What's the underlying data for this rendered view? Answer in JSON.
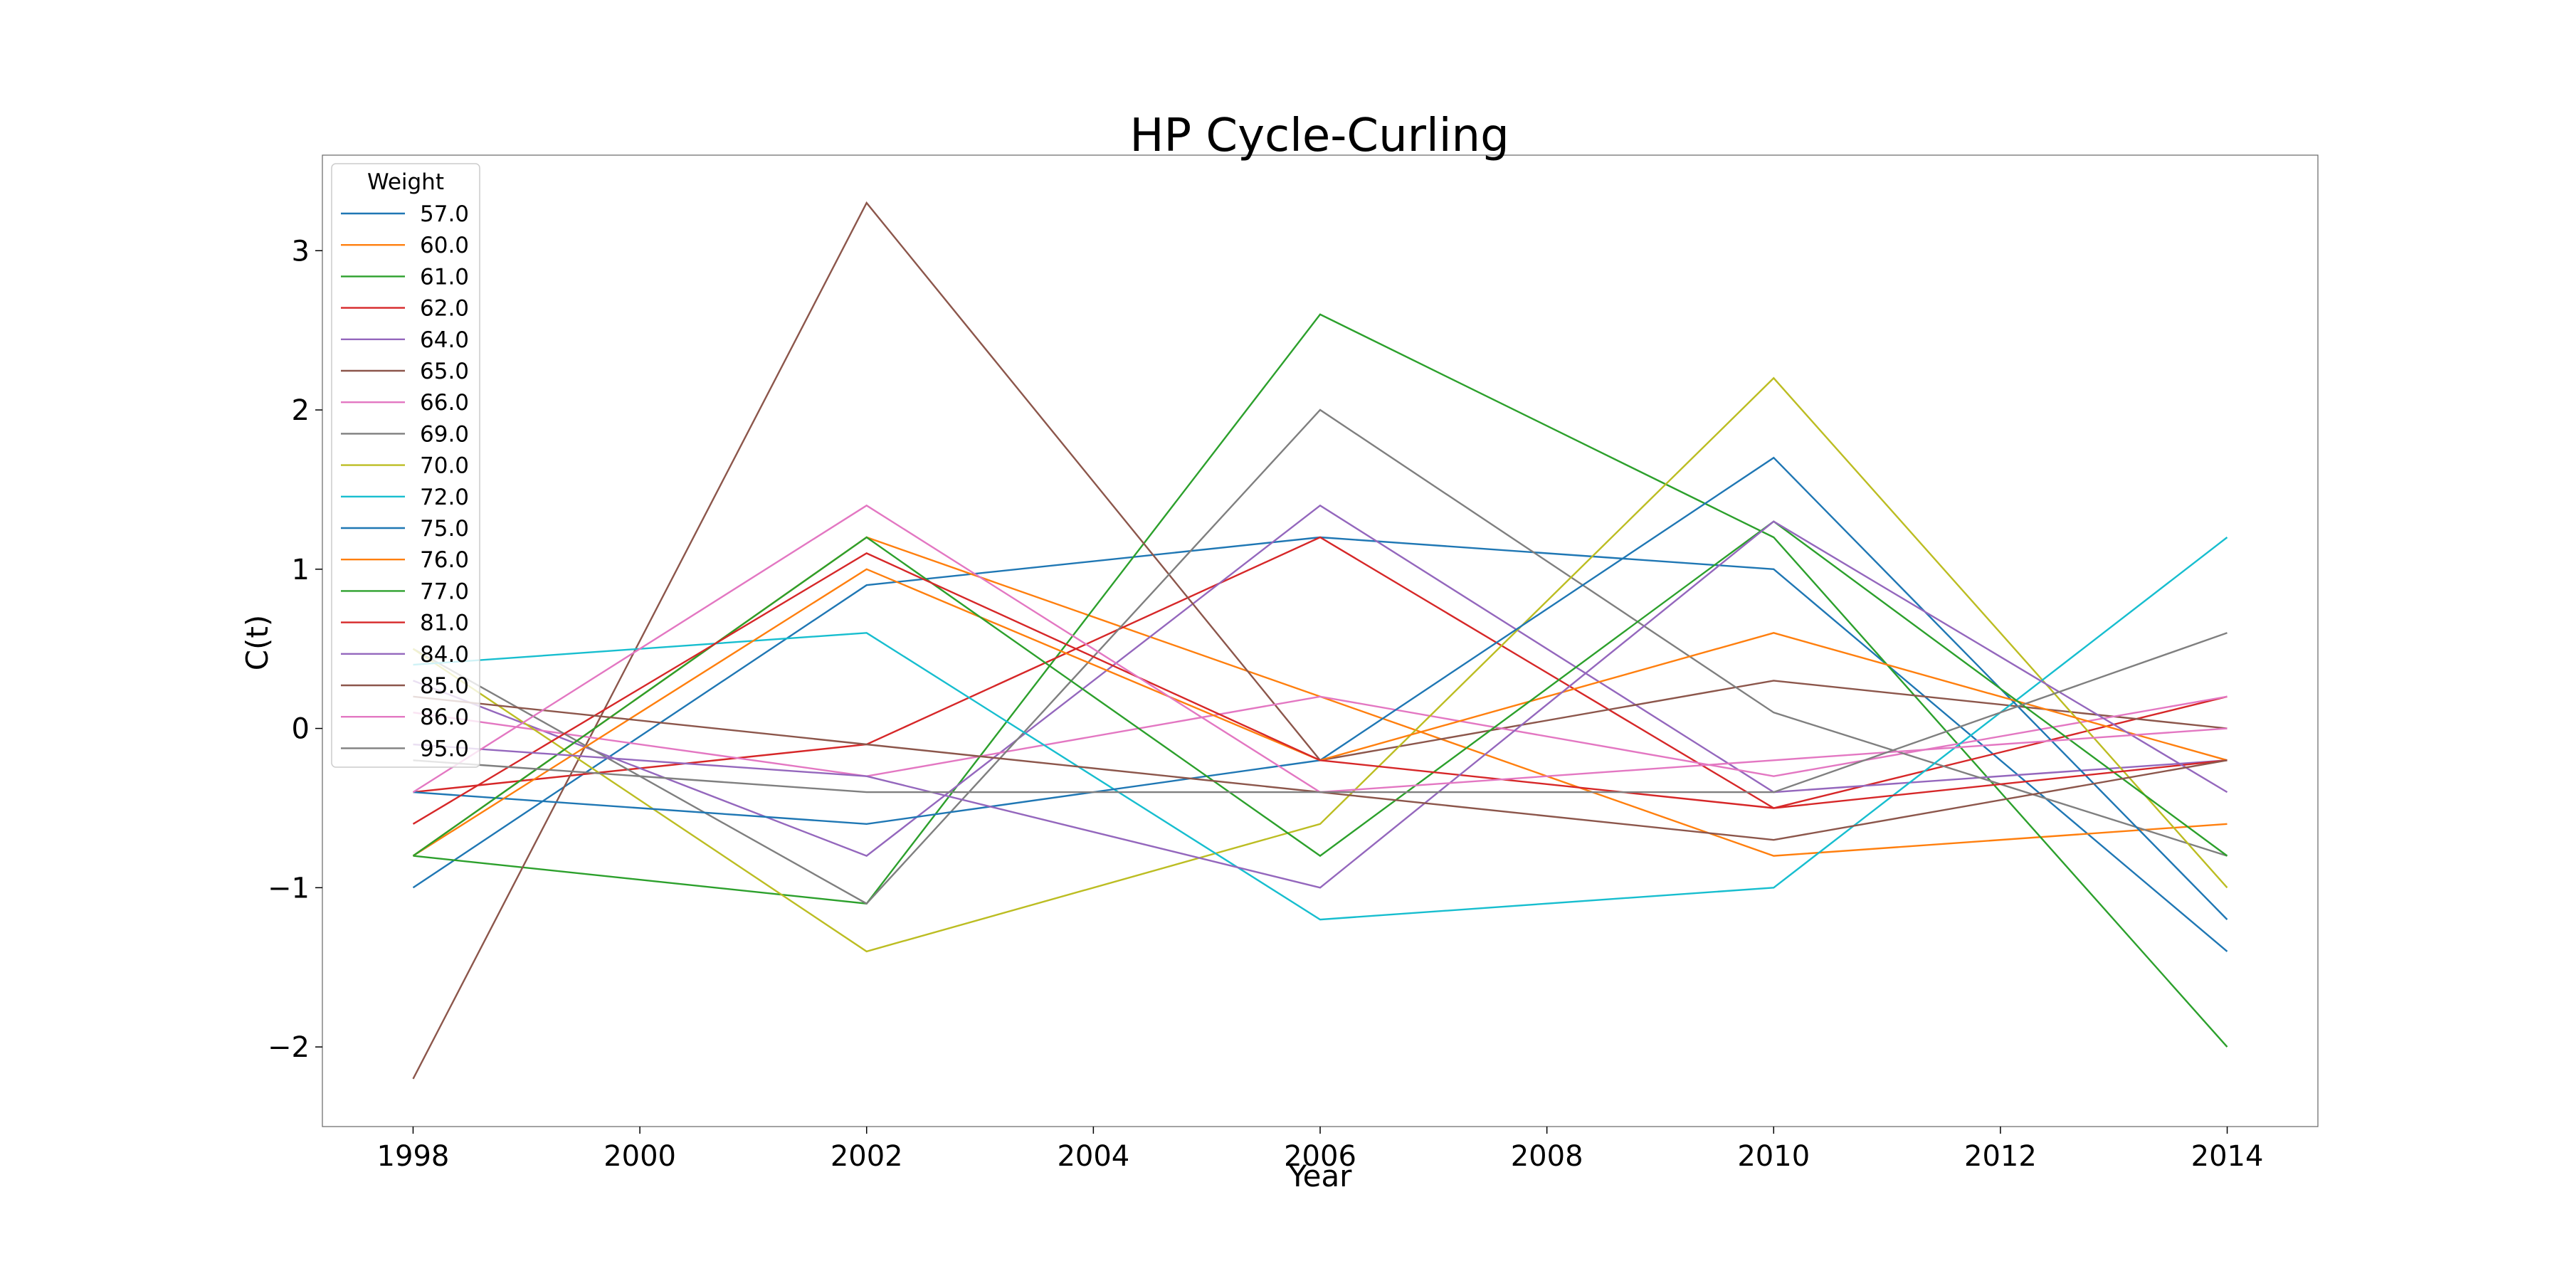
{
  "chart_data": {
    "type": "line",
    "title": "HP Cycle-Curling",
    "xlabel": "Year",
    "ylabel": "C(t)",
    "x": [
      1998,
      2002,
      2006,
      2010,
      2014
    ],
    "xlim": [
      1997.2,
      2014.8
    ],
    "ylim": [
      -2.5,
      3.6
    ],
    "xticks": [
      1998,
      2000,
      2002,
      2004,
      2006,
      2008,
      2010,
      2012,
      2014
    ],
    "yticks": [
      -2,
      -1,
      0,
      1,
      2,
      3
    ],
    "ytick_labels": [
      "−2",
      "−1",
      "0",
      "1",
      "2",
      "3"
    ],
    "grid": false,
    "legend": {
      "title": "Weight",
      "placement": "upper-left"
    },
    "series": [
      {
        "name": "57.0",
        "color": "#1f77b4",
        "values": [
          -1.0,
          0.9,
          1.2,
          1.0,
          -1.4
        ]
      },
      {
        "name": "60.0",
        "color": "#ff7f0e",
        "values": [
          -0.8,
          1.2,
          0.2,
          -0.8,
          -0.6
        ]
      },
      {
        "name": "61.0",
        "color": "#2ca02c",
        "values": [
          -0.8,
          -1.1,
          2.6,
          1.2,
          -2.0
        ]
      },
      {
        "name": "62.0",
        "color": "#d62728",
        "values": [
          -0.4,
          -0.1,
          1.2,
          -0.5,
          0.2
        ]
      },
      {
        "name": "64.0",
        "color": "#9467bd",
        "values": [
          0.3,
          -0.8,
          1.4,
          -0.4,
          -0.2
        ]
      },
      {
        "name": "65.0",
        "color": "#8c564b",
        "values": [
          -2.2,
          3.3,
          -0.2,
          0.3,
          0.0
        ]
      },
      {
        "name": "66.0",
        "color": "#e377c2",
        "values": [
          0.1,
          -0.3,
          0.2,
          -0.3,
          0.2
        ]
      },
      {
        "name": "69.0",
        "color": "#7f7f7f",
        "values": [
          0.5,
          -1.1,
          2.0,
          0.1,
          -0.8
        ]
      },
      {
        "name": "70.0",
        "color": "#bcbd22",
        "values": [
          0.5,
          -1.4,
          -0.6,
          2.2,
          -1.0
        ]
      },
      {
        "name": "72.0",
        "color": "#17becf",
        "values": [
          0.4,
          0.6,
          -1.2,
          -1.0,
          1.2
        ]
      },
      {
        "name": "75.0",
        "color": "#1f77b4",
        "values": [
          -0.4,
          -0.6,
          -0.2,
          1.7,
          -1.2
        ]
      },
      {
        "name": "76.0",
        "color": "#ff7f0e",
        "values": [
          -0.8,
          1.0,
          -0.2,
          0.6,
          -0.2
        ]
      },
      {
        "name": "77.0",
        "color": "#2ca02c",
        "values": [
          -0.8,
          1.2,
          -0.8,
          1.3,
          -0.8
        ]
      },
      {
        "name": "81.0",
        "color": "#d62728",
        "values": [
          -0.6,
          1.1,
          -0.2,
          -0.5,
          -0.2
        ]
      },
      {
        "name": "84.0",
        "color": "#9467bd",
        "values": [
          -0.1,
          -0.3,
          -1.0,
          1.3,
          -0.4
        ]
      },
      {
        "name": "85.0",
        "color": "#8c564b",
        "values": [
          0.2,
          -0.1,
          -0.4,
          -0.7,
          -0.2
        ]
      },
      {
        "name": "86.0",
        "color": "#e377c2",
        "values": [
          -0.4,
          1.4,
          -0.4,
          -0.2,
          0.0
        ]
      },
      {
        "name": "95.0",
        "color": "#7f7f7f",
        "values": [
          -0.2,
          -0.4,
          -0.4,
          -0.4,
          0.6
        ]
      }
    ]
  }
}
